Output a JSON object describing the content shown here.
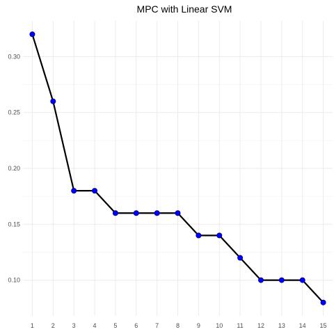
{
  "chart_data": {
    "type": "line",
    "title": "MPC with Linear SVM",
    "xlabel": "",
    "ylabel": "",
    "x": [
      1,
      2,
      3,
      4,
      5,
      6,
      7,
      8,
      9,
      10,
      11,
      12,
      13,
      14,
      15
    ],
    "series": [
      {
        "values": [
          0.32,
          0.26,
          0.18,
          0.18,
          0.16,
          0.16,
          0.16,
          0.16,
          0.14,
          0.14,
          0.12,
          0.1,
          0.1,
          0.1,
          0.08
        ]
      }
    ],
    "xlim": [
      0.55,
      15.45
    ],
    "ylim": [
      0.068,
      0.332
    ],
    "x_ticks": [
      "1",
      "2",
      "3",
      "4",
      "5",
      "6",
      "7",
      "8",
      "9",
      "10",
      "11",
      "12",
      "13",
      "14",
      "15"
    ],
    "y_ticks": [
      "0.10",
      "0.15",
      "0.20",
      "0.25",
      "0.30"
    ],
    "grid": true,
    "legend": "none",
    "colors": {
      "line": "#000000",
      "point": "#0000ff",
      "point_outline": "#00008b",
      "grid": "#ebebeb"
    }
  }
}
